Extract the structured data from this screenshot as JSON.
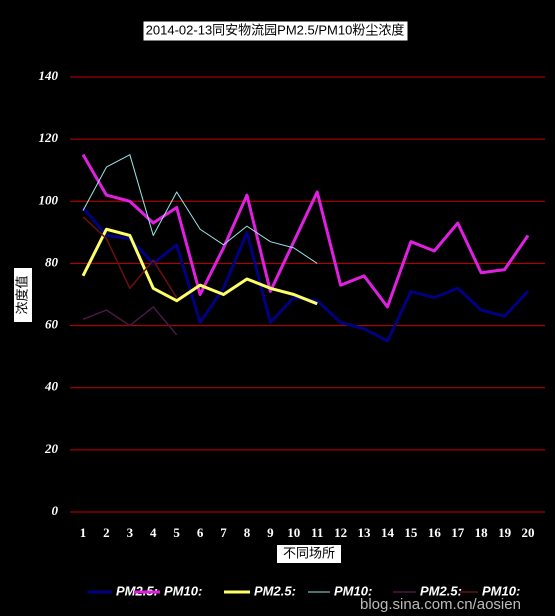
{
  "chart_data": {
    "type": "line",
    "title": "2014-02-13同安物流园PM2.5/PM10粉尘浓度",
    "x_label": "不同场所",
    "y_label": "浓度值",
    "watermark": "blog.sina.com.cn/aosien",
    "categories": [
      "1",
      "2",
      "3",
      "4",
      "5",
      "6",
      "7",
      "8",
      "9",
      "10",
      "11",
      "12",
      "13",
      "14",
      "15",
      "16",
      "17",
      "18",
      "19",
      "20"
    ],
    "ylim": [
      0,
      140
    ],
    "yticks": [
      0,
      20,
      40,
      60,
      80,
      100,
      120,
      140
    ],
    "grid": true,
    "legend": "bottom",
    "series": [
      {
        "name": "PM2.5:",
        "color": "#000080",
        "width": 3,
        "values": [
          98,
          89,
          88,
          80,
          86,
          61,
          72,
          90,
          61,
          69,
          68,
          61,
          59,
          55,
          71,
          69,
          72,
          65,
          63,
          71
        ]
      },
      {
        "name": "PM10:",
        "color": "#e020e0",
        "width": 3,
        "values": [
          115,
          102,
          100,
          93,
          98,
          70,
          85,
          102,
          71,
          87,
          103,
          73,
          76,
          66,
          87,
          84,
          93,
          77,
          78,
          89
        ]
      },
      {
        "name": "PM2.5:",
        "color": "#ffff66",
        "width": 3,
        "values": [
          76,
          91,
          89,
          72,
          68,
          73,
          70,
          75,
          72,
          70,
          67,
          null,
          null,
          null,
          null,
          null,
          null,
          null,
          null,
          null
        ]
      },
      {
        "name": "PM10:",
        "color": "#99e6e6",
        "width": 1,
        "values": [
          97,
          111,
          115,
          89,
          103,
          91,
          86,
          92,
          87,
          85,
          80,
          null,
          null,
          null,
          null,
          null,
          null,
          null,
          null,
          null
        ]
      },
      {
        "name": "PM2.5:",
        "color": "#4b1848",
        "width": 1.5,
        "values": [
          62,
          65,
          60,
          66,
          57,
          null,
          null,
          null,
          null,
          null,
          null,
          null,
          null,
          null,
          null,
          null,
          null,
          null,
          null,
          null
        ]
      },
      {
        "name": "PM10:",
        "color": "#6b1010",
        "width": 1.5,
        "values": [
          95,
          88,
          72,
          81,
          69,
          null,
          null,
          null,
          null,
          null,
          null,
          null,
          null,
          null,
          null,
          null,
          null,
          null,
          null,
          null
        ]
      }
    ]
  }
}
